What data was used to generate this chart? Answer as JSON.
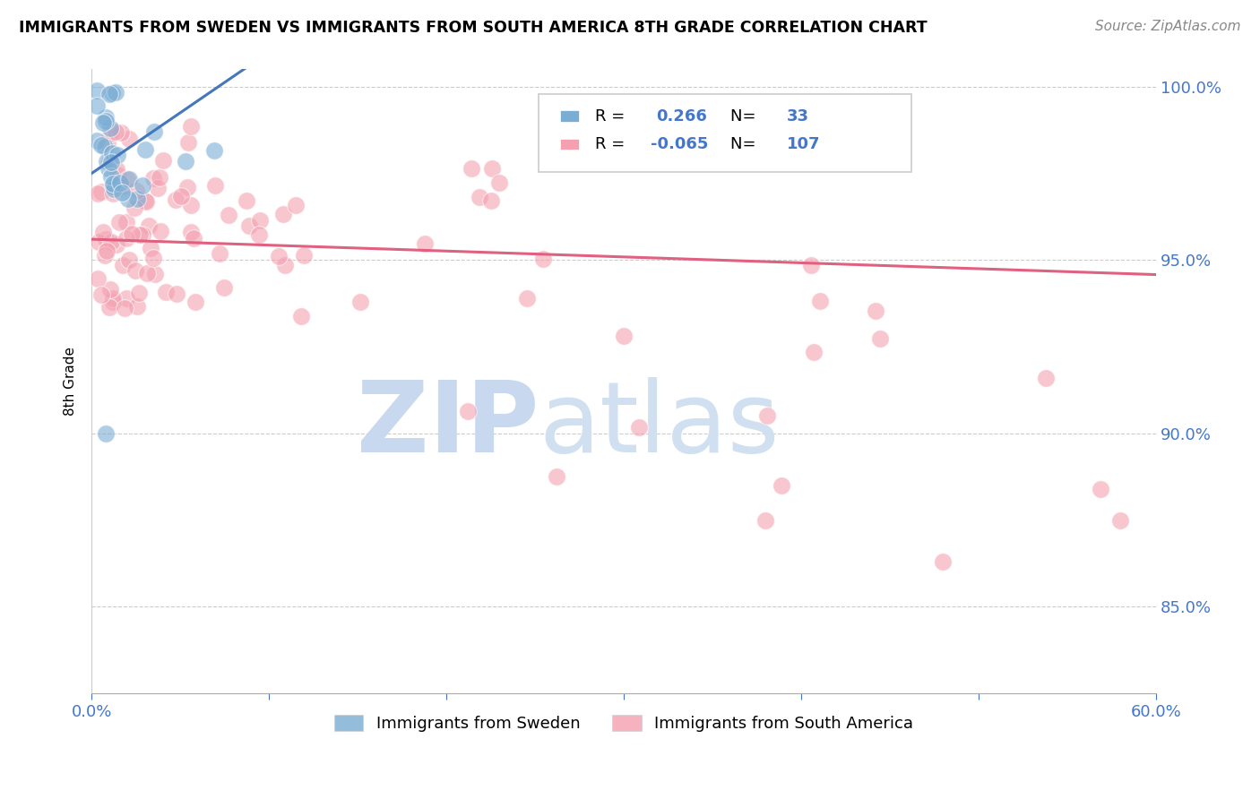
{
  "title": "IMMIGRANTS FROM SWEDEN VS IMMIGRANTS FROM SOUTH AMERICA 8TH GRADE CORRELATION CHART",
  "source": "Source: ZipAtlas.com",
  "ylabel": "8th Grade",
  "xlim": [
    0.0,
    0.6
  ],
  "ylim": [
    0.825,
    1.005
  ],
  "yticks": [
    0.85,
    0.9,
    0.95,
    1.0
  ],
  "yticklabels": [
    "85.0%",
    "90.0%",
    "95.0%",
    "100.0%"
  ],
  "blue_R": 0.266,
  "blue_N": 33,
  "pink_R": -0.065,
  "pink_N": 107,
  "legend_label_blue": "Immigrants from Sweden",
  "legend_label_pink": "Immigrants from South America",
  "background_color": "#ffffff",
  "blue_color": "#7aadd4",
  "pink_color": "#f4a0b0",
  "blue_line_color": "#4477bb",
  "pink_line_color": "#e06080",
  "axis_color": "#4477cc",
  "grid_color": "#cccccc",
  "watermark_zip": "ZIP",
  "watermark_atlas": "atlas",
  "watermark_color_zip": "#c8d8ee",
  "watermark_color_atlas": "#d0e0f0"
}
